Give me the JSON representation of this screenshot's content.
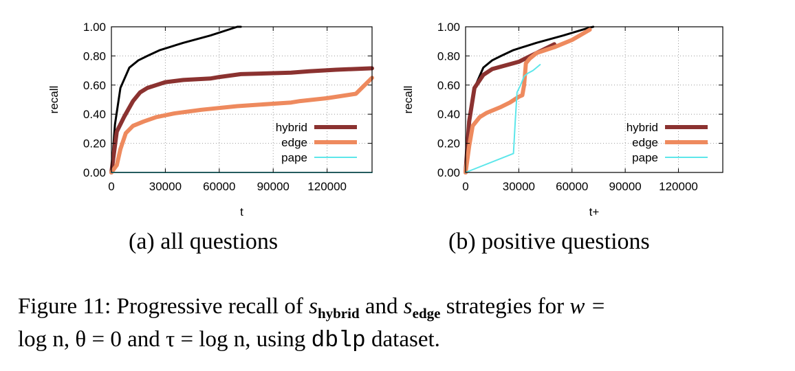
{
  "colors": {
    "all": "#000000",
    "hybrid": "#8b3230",
    "edge": "#ee8a5e",
    "pape": "#5ce6ea"
  },
  "chart_data": [
    {
      "type": "line",
      "subcaption": "(a) all questions",
      "xlabel": "t",
      "ylabel": "recall",
      "xlim": [
        0,
        145000
      ],
      "ylim": [
        0,
        1.0
      ],
      "xticks": [
        0,
        30000,
        60000,
        90000,
        120000
      ],
      "yticks": [
        0,
        0.2,
        0.4,
        0.6,
        0.8,
        1.0
      ],
      "xtick_labels": [
        "0",
        "30000",
        "60000",
        "90000",
        "120000"
      ],
      "ytick_labels": [
        "0.00",
        "0.20",
        "0.40",
        "0.60",
        "0.80",
        "1.00"
      ],
      "grid": true,
      "legend_position": "bottom-right",
      "series": [
        {
          "name": "",
          "color": "#000000",
          "in_legend": false,
          "x": [
            0,
            2000,
            5000,
            10000,
            15000,
            20000,
            27000,
            40000,
            55000,
            70000,
            72000
          ],
          "y": [
            0,
            0.33,
            0.58,
            0.72,
            0.77,
            0.8,
            0.84,
            0.89,
            0.94,
            1.0,
            1.0
          ]
        },
        {
          "name": "hybrid",
          "color": "#8b3230",
          "in_legend": true,
          "x": [
            0,
            3000,
            7000,
            12000,
            16000,
            20000,
            25000,
            30000,
            40000,
            55000,
            60000,
            72000,
            100000,
            110000,
            125000,
            145000
          ],
          "y": [
            0,
            0.28,
            0.38,
            0.49,
            0.55,
            0.58,
            0.6,
            0.62,
            0.635,
            0.645,
            0.655,
            0.675,
            0.685,
            0.695,
            0.705,
            0.715
          ]
        },
        {
          "name": "edge",
          "color": "#ee8a5e",
          "in_legend": true,
          "x": [
            0,
            3000,
            5000,
            8000,
            12000,
            18000,
            25000,
            35000,
            50000,
            70000,
            100000,
            105000,
            120000,
            136000,
            145000
          ],
          "y": [
            0,
            0.05,
            0.16,
            0.27,
            0.32,
            0.35,
            0.38,
            0.405,
            0.43,
            0.455,
            0.48,
            0.49,
            0.51,
            0.54,
            0.65
          ]
        },
        {
          "name": "pape",
          "color": "#5ce6ea",
          "in_legend": true,
          "x": [
            0,
            145000
          ],
          "y": [
            0,
            0
          ]
        }
      ]
    },
    {
      "type": "line",
      "subcaption": "(b) positive questions",
      "xlabel": "t+",
      "ylabel": "recall",
      "xlim": [
        0,
        145000
      ],
      "ylim": [
        0,
        1.0
      ],
      "xticks": [
        0,
        30000,
        60000,
        90000,
        120000
      ],
      "yticks": [
        0,
        0.2,
        0.4,
        0.6,
        0.8,
        1.0
      ],
      "xtick_labels": [
        "0",
        "30000",
        "60000",
        "90000",
        "120000"
      ],
      "ytick_labels": [
        "0.00",
        "0.20",
        "0.40",
        "0.60",
        "0.80",
        "1.00"
      ],
      "grid": true,
      "legend_position": "bottom-right",
      "series": [
        {
          "name": "",
          "color": "#000000",
          "in_legend": false,
          "x": [
            0,
            2000,
            5000,
            10000,
            15000,
            20000,
            27000,
            40000,
            55000,
            70000,
            72000
          ],
          "y": [
            0,
            0.33,
            0.58,
            0.72,
            0.77,
            0.8,
            0.84,
            0.89,
            0.94,
            0.995,
            1.0
          ]
        },
        {
          "name": "hybrid",
          "color": "#8b3230",
          "in_legend": true,
          "x": [
            0,
            2000,
            5000,
            10000,
            15000,
            30000,
            50000
          ],
          "y": [
            0,
            0.35,
            0.58,
            0.67,
            0.71,
            0.76,
            0.88
          ]
        },
        {
          "name": "edge",
          "color": "#ee8a5e",
          "in_legend": true,
          "x": [
            0,
            2000,
            4000,
            8000,
            12000,
            20000,
            25000,
            30000,
            32000,
            33000,
            34000,
            36000,
            40000,
            45000,
            50000,
            60000,
            70000
          ],
          "y": [
            0,
            0.18,
            0.32,
            0.38,
            0.41,
            0.45,
            0.48,
            0.52,
            0.53,
            0.6,
            0.75,
            0.78,
            0.82,
            0.84,
            0.86,
            0.91,
            0.98
          ]
        },
        {
          "name": "pape",
          "color": "#5ce6ea",
          "in_legend": true,
          "x": [
            0,
            27000,
            28000,
            29000,
            31000,
            33000,
            35000,
            38000,
            40000,
            42000
          ],
          "y": [
            0,
            0.13,
            0.35,
            0.55,
            0.6,
            0.66,
            0.68,
            0.7,
            0.72,
            0.74
          ]
        }
      ]
    }
  ],
  "caption": {
    "prefix": "Figure 11: Progressive recall of",
    "s1": "s",
    "s1_sub": "hybrid",
    "and": "and",
    "s2": "s",
    "s2_sub": "edge",
    "mid": "strategies for",
    "w_eq": "w =",
    "line2_start": "log n, θ = 0 and τ = log n, using",
    "dataset": "dblp",
    "suffix": "dataset."
  }
}
